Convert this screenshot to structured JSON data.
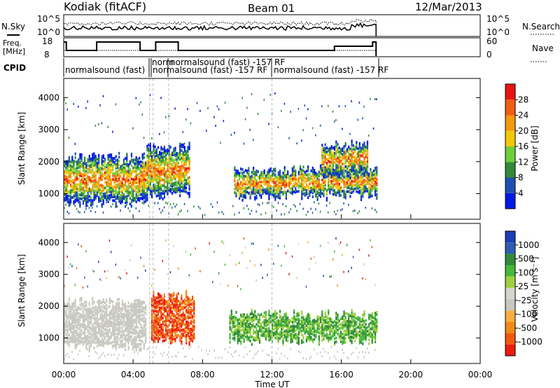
{
  "header": {
    "site": "Kodiak (fitACF)",
    "beam": "Beam 01",
    "date": "12/Mar/2013"
  },
  "left_labels": {
    "nsky": "N.Sky",
    "freq": "Freq.",
    "freq_unit": "[MHz]",
    "cpid": "CPID"
  },
  "right_labels": {
    "nsearch": "N.Search",
    "nave": "Nave"
  },
  "noise_axis": {
    "left_ticks": [
      "10^5",
      "10^0"
    ],
    "right_ticks": [
      "10^5",
      "10^0"
    ]
  },
  "freq_axis": {
    "left_ticks": [
      "18",
      "8"
    ],
    "right_ticks": [
      "60",
      "0"
    ]
  },
  "cpid_labels": [
    {
      "t": 0.1,
      "text": "normalsound (fast)"
    },
    {
      "t": 4.95,
      "text": "norm"
    },
    {
      "t": 4.95,
      "text": "normalsound (fast) -157 RF"
    },
    {
      "t": 5.3,
      "text": "normalsound (fast) -157 RF"
    },
    {
      "t": 12.1,
      "text": "normalsound (fast) -157 RF"
    }
  ],
  "colors": {
    "power": [
      "#0019e6",
      "#1f4fb0",
      "#2f8a3a",
      "#6fcf3a",
      "#f3c80a",
      "#f39a0f",
      "#ee5f12",
      "#e8140f"
    ],
    "velocity": [
      "#ee1a10",
      "#f05810",
      "#f18a18",
      "#f6b040",
      "#c8c8c0",
      "#d6d6cc",
      "#9fd040",
      "#46b83a",
      "#2f8a3a",
      "#2f5db2",
      "#1c3cb8"
    ]
  },
  "chart_data": [
    {
      "type": "heatmap",
      "title": "Power",
      "xlabel": "",
      "ylabel": "Slant Range [km]",
      "xlim": [
        0,
        24
      ],
      "ylim": [
        200,
        4600
      ],
      "yticks": [
        1000,
        2000,
        3000,
        4000
      ],
      "colorbar": {
        "label": "Power [dB]",
        "ticks": [
          4,
          8,
          12,
          16,
          20,
          24,
          28
        ],
        "range": [
          0,
          32
        ]
      },
      "data_extent": {
        "t_end": 18.0
      },
      "regions": [
        {
          "t": [
            0.0,
            4.7
          ],
          "r": [
            700,
            2100
          ],
          "value": "high-mixed"
        },
        {
          "t": [
            4.7,
            7.2
          ],
          "r": [
            900,
            2400
          ],
          "value": "high"
        },
        {
          "t": [
            9.8,
            18.0
          ],
          "r": [
            900,
            1700
          ],
          "value": "high"
        },
        {
          "t": [
            14.8,
            17.5
          ],
          "r": [
            1600,
            2500
          ],
          "value": "medium"
        }
      ]
    },
    {
      "type": "heatmap",
      "title": "Velocity",
      "xlabel": "Time UT",
      "ylabel": "Slant Range [km]",
      "xlim": [
        0,
        24
      ],
      "ylim": [
        200,
        4600
      ],
      "yticks": [
        1000,
        2000,
        3000,
        4000
      ],
      "xticks": [
        "00:00",
        "04:00",
        "08:00",
        "12:00",
        "16:00",
        "20:00",
        "00:00"
      ],
      "colorbar": {
        "label": "Velocity [m s⁻¹]",
        "ticks": [
          -1000,
          -500,
          -100,
          -25,
          25,
          100,
          500,
          1000
        ]
      },
      "regions": [
        {
          "t": [
            0.0,
            4.7
          ],
          "r": [
            700,
            2100
          ],
          "value": "ground-scatter"
        },
        {
          "t": [
            5.0,
            7.5
          ],
          "r": [
            900,
            2300
          ],
          "value": "negative"
        },
        {
          "t": [
            9.5,
            18.0
          ],
          "r": [
            900,
            1700
          ],
          "value": "positive-small"
        }
      ]
    }
  ]
}
